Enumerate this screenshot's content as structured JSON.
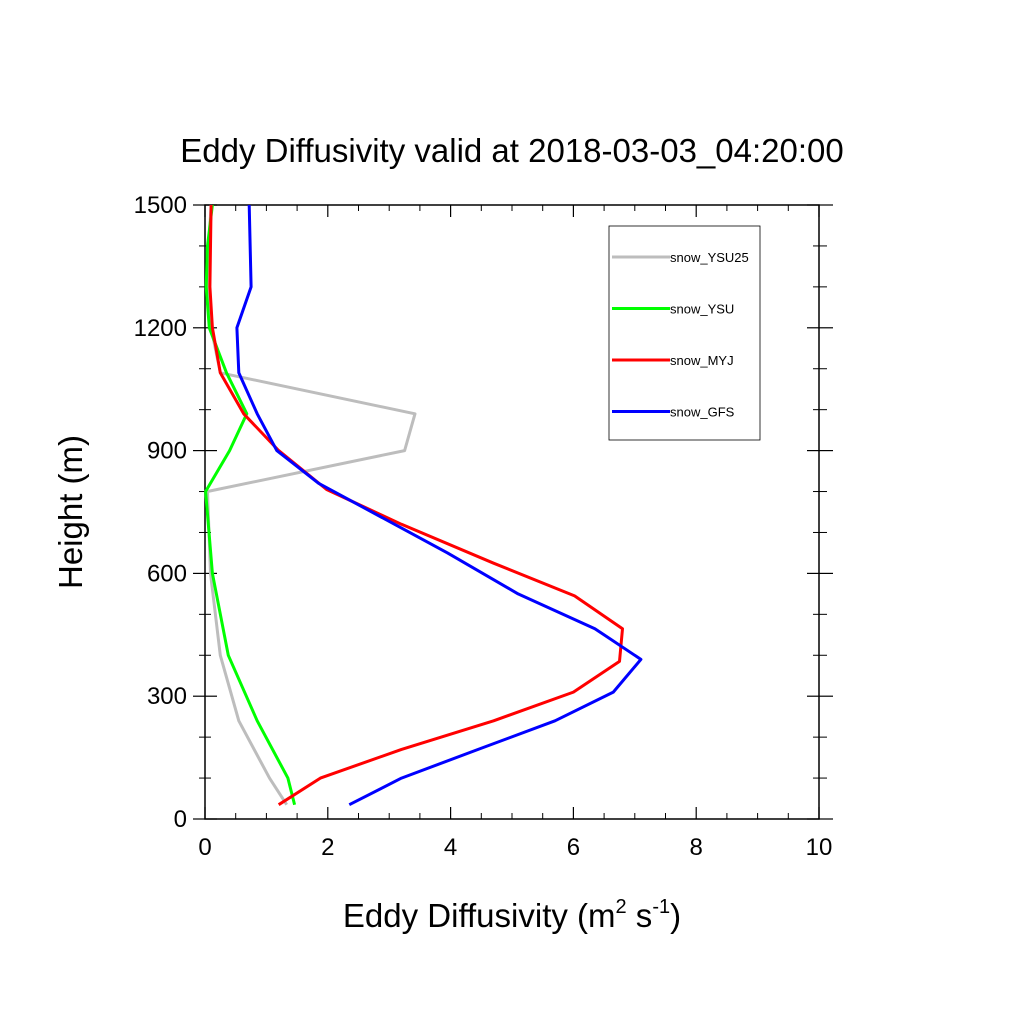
{
  "chart_data": {
    "type": "line",
    "title": "Eddy Diffusivity valid at 2018-03-03_04:20:00",
    "xlabel": "Eddy Diffusivity (m",
    "xlabel_sup1": "2",
    "xlabel_mid": " s",
    "xlabel_sup2": "-1",
    "xlabel_end": ")",
    "ylabel": "Height (m)",
    "xlim": [
      0,
      10
    ],
    "ylim": [
      0,
      1500
    ],
    "xticks": [
      0,
      2,
      4,
      6,
      8,
      10
    ],
    "yticks": [
      0,
      300,
      600,
      900,
      1200,
      1500
    ],
    "grid": false,
    "legend_position": "top-right",
    "series": [
      {
        "name": "snow_YSU25",
        "color": "#bdbdbd",
        "x": [
          1.33,
          1.05,
          0.55,
          0.25,
          0.09,
          0.04,
          3.25,
          3.42,
          0.25,
          0.1,
          0.05,
          0.06,
          0.1
        ],
        "y": [
          35,
          100,
          240,
          400,
          600,
          800,
          900,
          990,
          1090,
          1200,
          1300,
          1400,
          1500
        ]
      },
      {
        "name": "snow_YSU",
        "color": "#00ff00",
        "x": [
          1.46,
          1.35,
          0.85,
          0.38,
          0.12,
          0.01,
          0.4,
          0.68,
          0.35,
          0.07,
          0.02,
          0.04,
          0.12
        ],
        "y": [
          35,
          100,
          240,
          400,
          600,
          800,
          900,
          990,
          1090,
          1200,
          1300,
          1400,
          1500
        ]
      },
      {
        "name": "snow_MYJ",
        "color": "#ff0000",
        "x": [
          1.2,
          1.88,
          3.2,
          4.7,
          6.0,
          6.75,
          6.8,
          6.02,
          4.7,
          3.2,
          1.98,
          1.2,
          0.63,
          0.25,
          0.12,
          0.08,
          0.09,
          0.1
        ],
        "y": [
          35,
          100,
          170,
          240,
          310,
          385,
          465,
          545,
          625,
          720,
          805,
          900,
          990,
          1090,
          1200,
          1300,
          1400,
          1500
        ]
      },
      {
        "name": "snow_GFS",
        "color": "#0000ff",
        "x": [
          2.35,
          3.2,
          4.45,
          5.7,
          6.65,
          7.1,
          6.35,
          5.1,
          3.95,
          2.9,
          1.85,
          1.17,
          0.85,
          0.55,
          0.52,
          0.75,
          0.72
        ],
        "y": [
          35,
          100,
          170,
          240,
          310,
          390,
          465,
          550,
          650,
          735,
          820,
          900,
          990,
          1090,
          1200,
          1300,
          1500
        ]
      }
    ]
  }
}
